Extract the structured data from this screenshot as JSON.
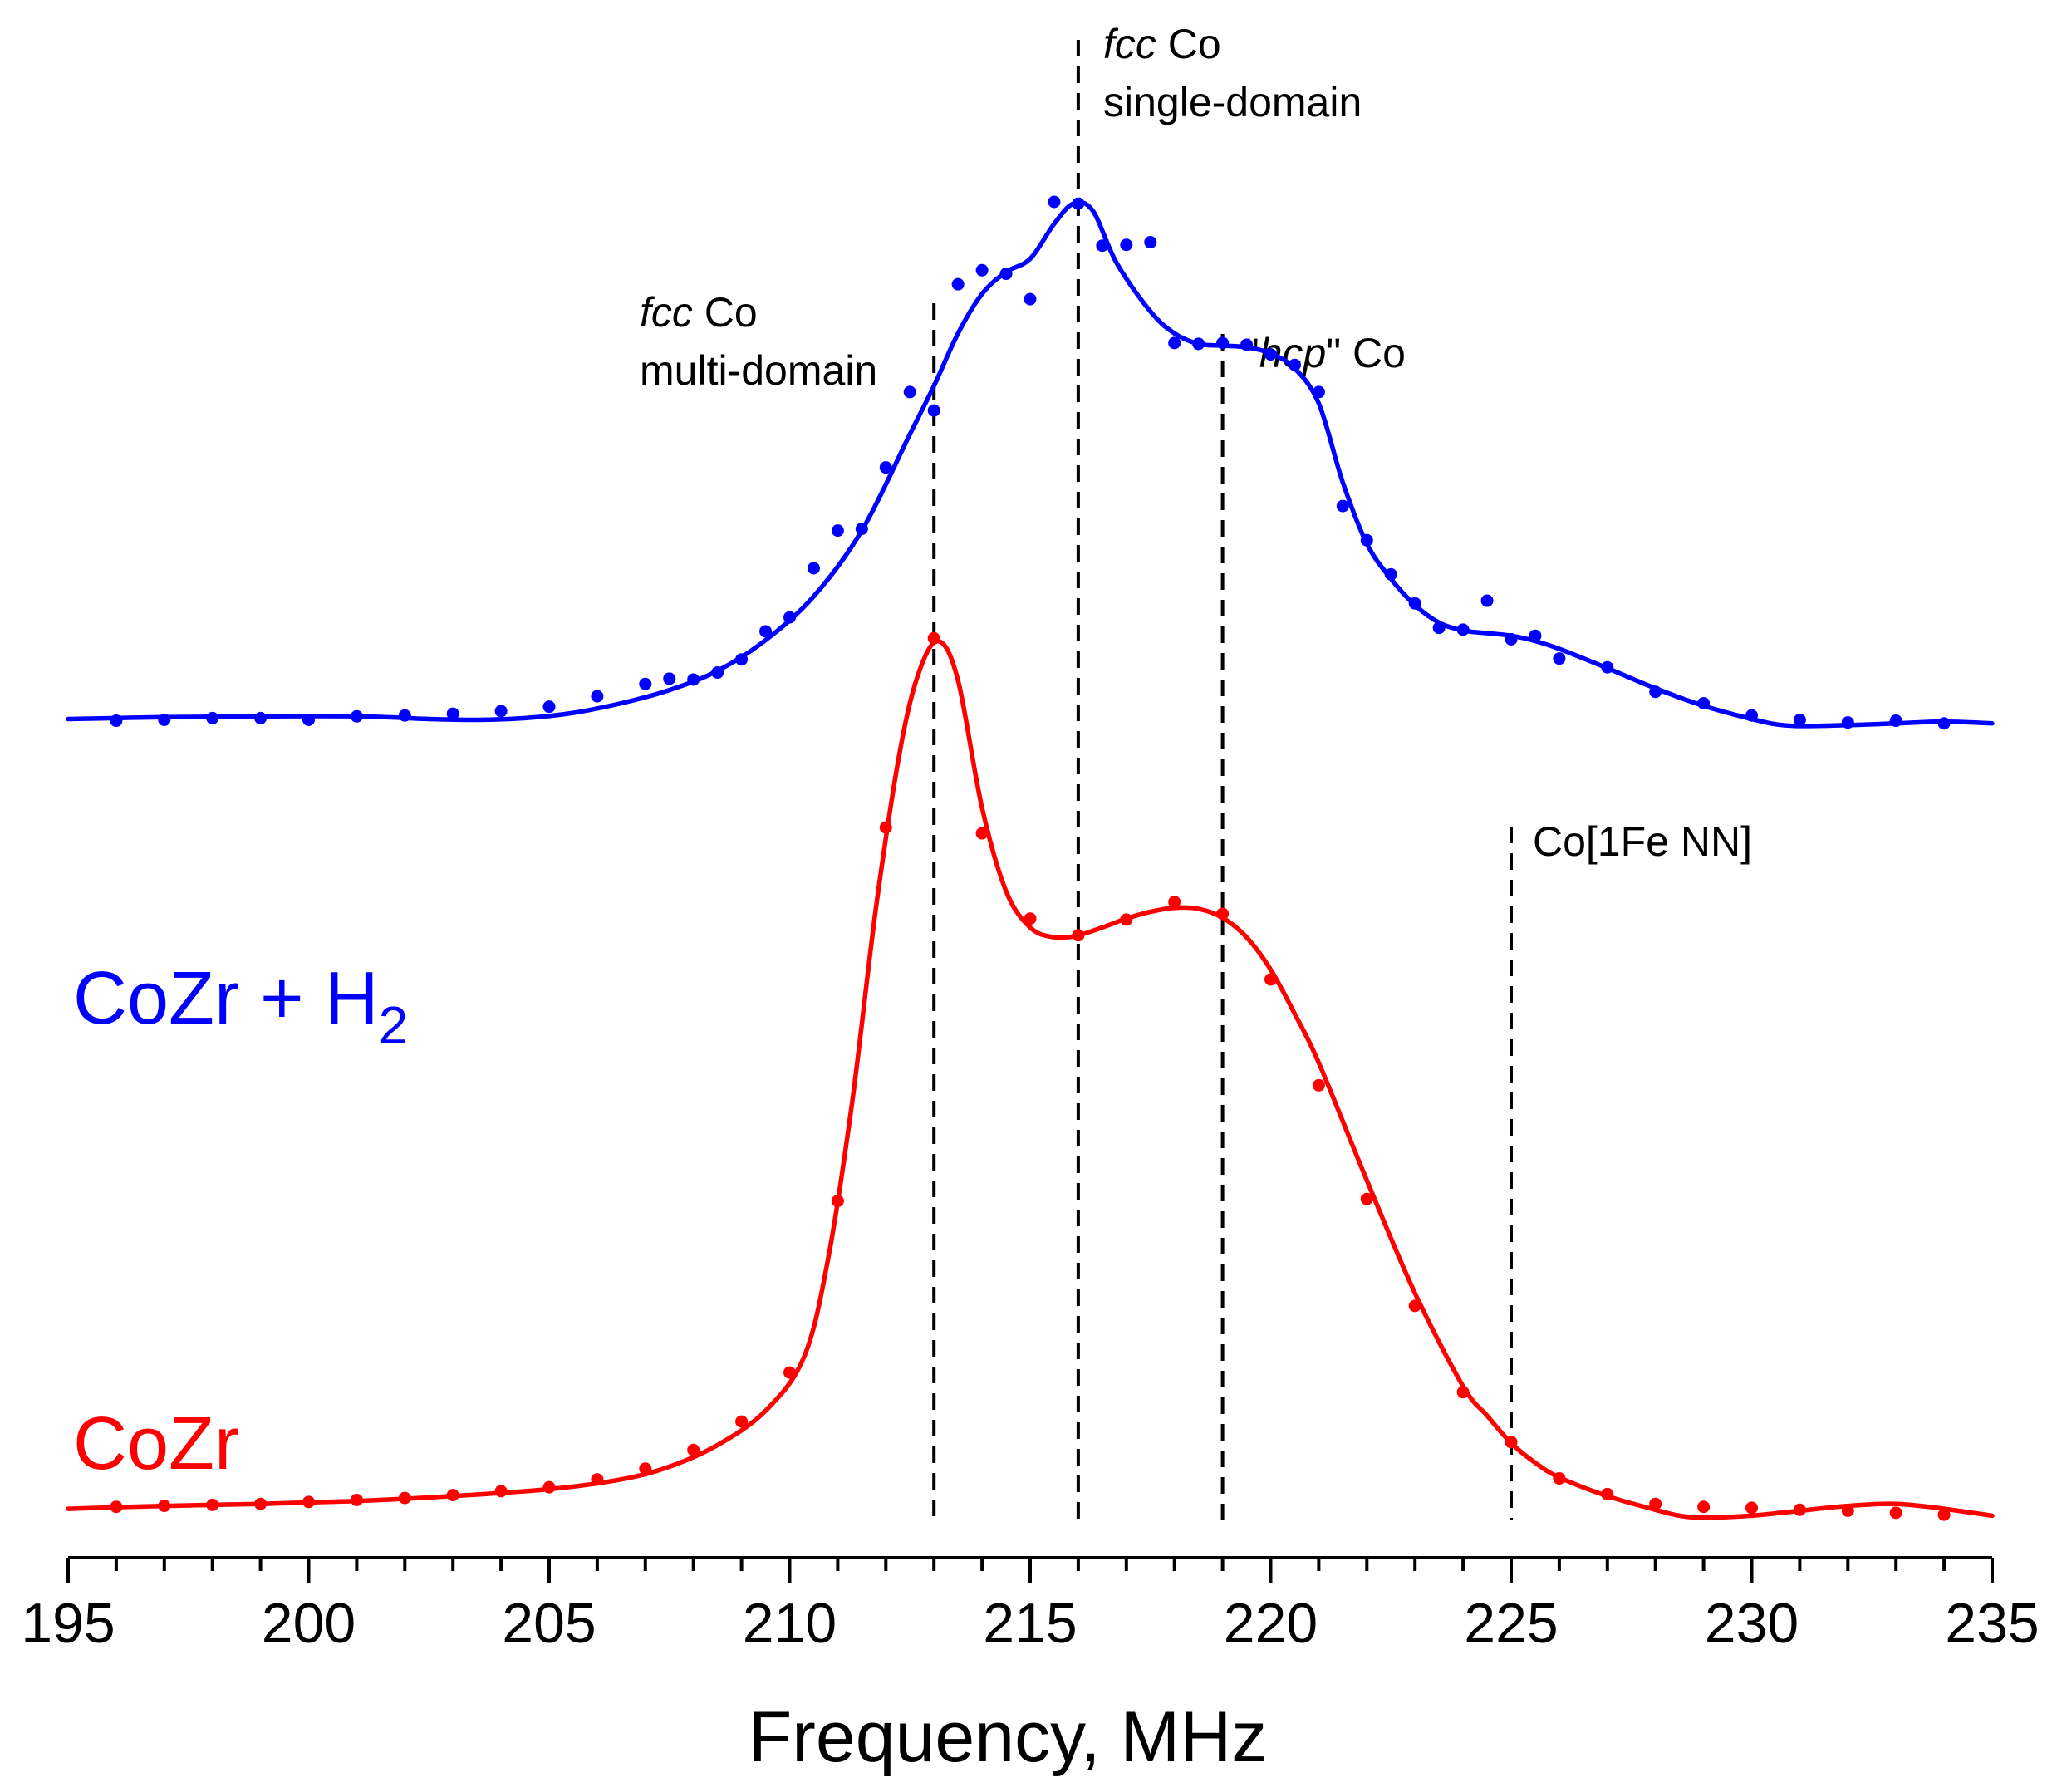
{
  "chart_data": {
    "type": "scatter",
    "title": "",
    "xlabel": "Frequency, MHz",
    "ylabel": "",
    "xlim": [
      195,
      235
    ],
    "ylim": [
      0,
      1
    ],
    "xticks": [
      195,
      200,
      205,
      210,
      215,
      220,
      225,
      230,
      235
    ],
    "grid": false,
    "series": [
      {
        "name": "CoZr + H",
        "name_sub": "2",
        "color": "#0000ff",
        "points": [
          [
            196,
            0.408
          ],
          [
            197,
            0.409
          ],
          [
            198,
            0.411
          ],
          [
            199,
            0.411
          ],
          [
            200,
            0.409
          ],
          [
            201,
            0.413
          ],
          [
            202,
            0.414
          ],
          [
            203,
            0.416
          ],
          [
            204,
            0.419
          ],
          [
            205,
            0.424
          ],
          [
            206,
            0.436
          ],
          [
            207,
            0.45
          ],
          [
            207.5,
            0.456
          ],
          [
            208,
            0.455
          ],
          [
            208.5,
            0.463
          ],
          [
            209,
            0.478
          ],
          [
            209.5,
            0.51
          ],
          [
            210,
            0.526
          ],
          [
            210.5,
            0.582
          ],
          [
            211,
            0.625
          ],
          [
            211.5,
            0.627
          ],
          [
            212,
            0.697
          ],
          [
            212.5,
            0.783
          ],
          [
            213,
            0.762
          ],
          [
            213.5,
            0.906
          ],
          [
            214,
            0.922
          ],
          [
            214.5,
            0.918
          ],
          [
            215,
            0.889
          ],
          [
            215.5,
            1.0
          ],
          [
            216,
            0.998
          ],
          [
            216.5,
            0.95
          ],
          [
            217,
            0.951
          ],
          [
            217.5,
            0.954
          ],
          [
            218,
            0.839
          ],
          [
            218.5,
            0.838
          ],
          [
            219,
            0.839
          ],
          [
            219.5,
            0.837
          ],
          [
            220,
            0.826
          ],
          [
            220.5,
            0.814
          ],
          [
            221,
            0.783
          ],
          [
            221.5,
            0.653
          ],
          [
            222,
            0.614
          ],
          [
            222.5,
            0.575
          ],
          [
            223,
            0.542
          ],
          [
            223.5,
            0.514
          ],
          [
            224,
            0.512
          ],
          [
            224.5,
            0.545
          ],
          [
            225,
            0.501
          ],
          [
            225.5,
            0.505
          ],
          [
            226,
            0.479
          ],
          [
            227,
            0.469
          ],
          [
            228,
            0.441
          ],
          [
            229,
            0.428
          ],
          [
            230,
            0.414
          ],
          [
            231,
            0.409
          ],
          [
            232,
            0.406
          ],
          [
            233,
            0.408
          ],
          [
            234,
            0.405
          ]
        ],
        "fit": [
          [
            195,
            0.41
          ],
          [
            197,
            0.412
          ],
          [
            199,
            0.413
          ],
          [
            201,
            0.413
          ],
          [
            202.5,
            0.41
          ],
          [
            203.5,
            0.409
          ],
          [
            204.5,
            0.411
          ],
          [
            205.5,
            0.417
          ],
          [
            206.5,
            0.428
          ],
          [
            207.5,
            0.443
          ],
          [
            208.5,
            0.465
          ],
          [
            209.5,
            0.5
          ],
          [
            210.5,
            0.55
          ],
          [
            211.5,
            0.625
          ],
          [
            212.5,
            0.735
          ],
          [
            213,
            0.79
          ],
          [
            213.5,
            0.85
          ],
          [
            214,
            0.895
          ],
          [
            214.5,
            0.92
          ],
          [
            215,
            0.935
          ],
          [
            215.5,
            0.975
          ],
          [
            215.9,
            0.998
          ],
          [
            216.3,
            0.99
          ],
          [
            216.8,
            0.93
          ],
          [
            217.5,
            0.875
          ],
          [
            218,
            0.85
          ],
          [
            218.5,
            0.838
          ],
          [
            219,
            0.836
          ],
          [
            219.5,
            0.834
          ],
          [
            220,
            0.827
          ],
          [
            220.5,
            0.81
          ],
          [
            221,
            0.77
          ],
          [
            221.5,
            0.68
          ],
          [
            222,
            0.61
          ],
          [
            222.5,
            0.57
          ],
          [
            223,
            0.54
          ],
          [
            223.5,
            0.52
          ],
          [
            224,
            0.511
          ],
          [
            224.5,
            0.508
          ],
          [
            225,
            0.505
          ],
          [
            225.5,
            0.499
          ],
          [
            226,
            0.49
          ],
          [
            227,
            0.468
          ],
          [
            228,
            0.445
          ],
          [
            229,
            0.425
          ],
          [
            230,
            0.41
          ],
          [
            230.5,
            0.404
          ],
          [
            231,
            0.402
          ],
          [
            232,
            0.403
          ],
          [
            233,
            0.405
          ],
          [
            234,
            0.407
          ],
          [
            235,
            0.405
          ]
        ]
      },
      {
        "name": "CoZr",
        "color": "#ff0000",
        "points": [
          [
            196,
            0.007
          ],
          [
            197,
            0.008
          ],
          [
            198,
            0.009
          ],
          [
            199,
            0.01
          ],
          [
            200,
            0.012
          ],
          [
            201,
            0.014
          ],
          [
            202,
            0.016
          ],
          [
            203,
            0.019
          ],
          [
            204,
            0.023
          ],
          [
            205,
            0.027
          ],
          [
            206,
            0.035
          ],
          [
            207,
            0.046
          ],
          [
            208,
            0.065
          ],
          [
            209,
            0.094
          ],
          [
            210,
            0.144
          ],
          [
            211,
            0.319
          ],
          [
            212,
            0.7
          ],
          [
            213,
            0.893
          ],
          [
            214,
            0.694
          ],
          [
            215,
            0.607
          ],
          [
            216,
            0.59
          ],
          [
            217,
            0.606
          ],
          [
            218,
            0.624
          ],
          [
            219,
            0.612
          ],
          [
            220,
            0.545
          ],
          [
            221,
            0.437
          ],
          [
            222,
            0.321
          ],
          [
            223,
            0.212
          ],
          [
            224,
            0.124
          ],
          [
            225,
            0.073
          ],
          [
            226,
            0.036
          ],
          [
            227,
            0.02
          ],
          [
            228,
            0.01
          ],
          [
            229,
            0.007
          ],
          [
            230,
            0.006
          ],
          [
            231,
            0.004
          ],
          [
            232,
            0.003
          ],
          [
            233,
            0.001
          ],
          [
            234,
            -0.001
          ]
        ],
        "fit": [
          [
            195,
            0.005
          ],
          [
            197,
            0.008
          ],
          [
            199,
            0.01
          ],
          [
            201,
            0.013
          ],
          [
            203,
            0.018
          ],
          [
            205,
            0.025
          ],
          [
            206.5,
            0.035
          ],
          [
            207.5,
            0.048
          ],
          [
            208.5,
            0.07
          ],
          [
            209.5,
            0.105
          ],
          [
            210.3,
            0.16
          ],
          [
            210.8,
            0.26
          ],
          [
            211.3,
            0.42
          ],
          [
            211.8,
            0.62
          ],
          [
            212.3,
            0.78
          ],
          [
            212.7,
            0.86
          ],
          [
            213.1,
            0.89
          ],
          [
            213.5,
            0.85
          ],
          [
            214,
            0.72
          ],
          [
            214.5,
            0.635
          ],
          [
            215,
            0.598
          ],
          [
            215.5,
            0.588
          ],
          [
            216,
            0.59
          ],
          [
            216.5,
            0.598
          ],
          [
            217,
            0.607
          ],
          [
            217.5,
            0.614
          ],
          [
            218,
            0.618
          ],
          [
            218.5,
            0.617
          ],
          [
            219,
            0.608
          ],
          [
            219.5,
            0.588
          ],
          [
            220,
            0.555
          ],
          [
            220.5,
            0.51
          ],
          [
            221,
            0.46
          ],
          [
            222,
            0.34
          ],
          [
            223,
            0.225
          ],
          [
            224,
            0.13
          ],
          [
            224.5,
            0.1
          ],
          [
            225,
            0.072
          ],
          [
            225.5,
            0.052
          ],
          [
            226,
            0.037
          ],
          [
            227,
            0.018
          ],
          [
            228,
            0.004
          ],
          [
            228.5,
            -0.002
          ],
          [
            229,
            -0.004
          ],
          [
            230,
            -0.002
          ],
          [
            231,
            0.003
          ],
          [
            232,
            0.008
          ],
          [
            233,
            0.01
          ],
          [
            234,
            0.005
          ],
          [
            235,
            -0.002
          ]
        ]
      }
    ],
    "reference_lines": [
      {
        "x": 213,
        "label_italic": "fcc",
        "label_rest": " Co",
        "label_line2": "multi-domain"
      },
      {
        "x": 216,
        "label_italic": "fcc",
        "label_rest": " Co",
        "label_line2": "single-domain"
      },
      {
        "x": 219,
        "label_prefix": "\"",
        "label_italic": "hcp",
        "label_rest": "\" Co",
        "label_line2": ""
      },
      {
        "x": 225,
        "label_prefix": "",
        "label_italic": "",
        "label_rest": "Co[1Fe NN]",
        "label_line2": ""
      }
    ]
  }
}
